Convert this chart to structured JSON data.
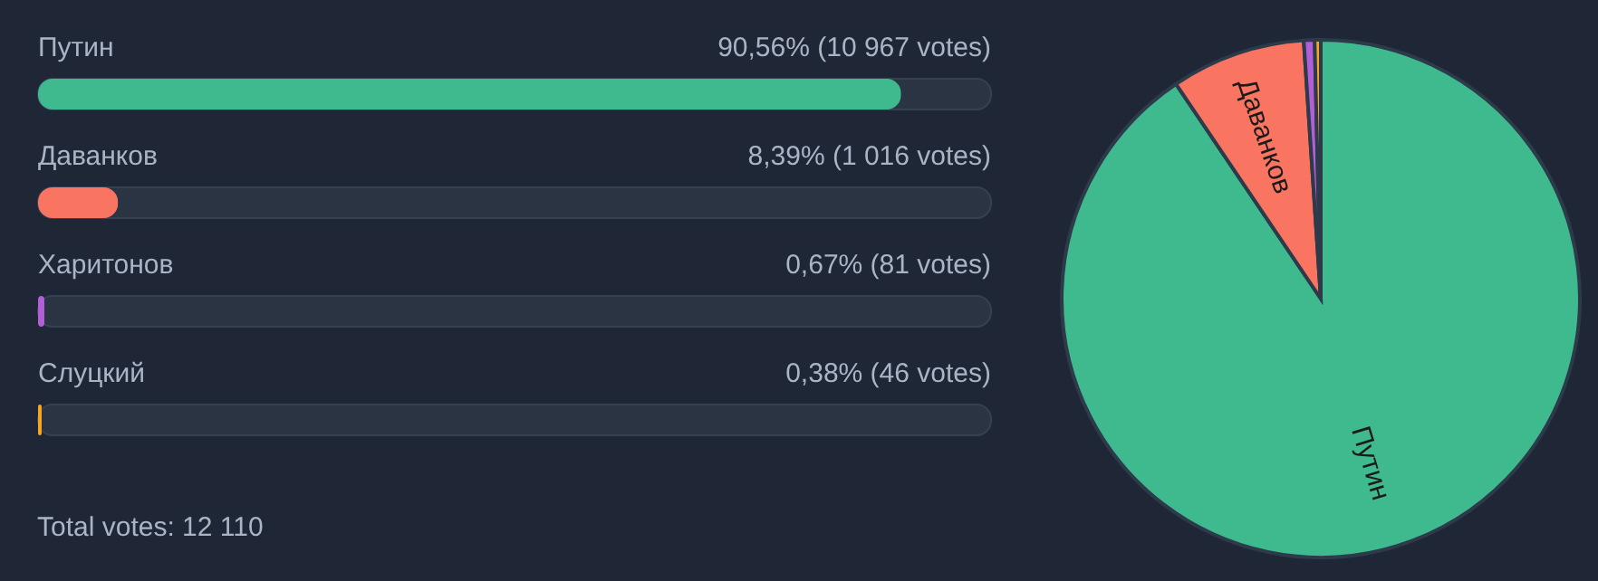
{
  "chart_data": [
    {
      "type": "bar",
      "orientation": "horizontal",
      "categories": [
        "Путин",
        "Даванков",
        "Харитонов",
        "Слуцкий"
      ],
      "values": [
        90.56,
        8.39,
        0.67,
        0.38
      ],
      "colors": [
        "#3fba8f",
        "#fa7561",
        "#b15fd6",
        "#f5a623"
      ],
      "value_labels": [
        "90,56% (10 967 votes)",
        "8,39% (1 016 votes)",
        "0,67% (81 votes)",
        "0,38% (46 votes)"
      ],
      "xlim": [
        0,
        100
      ],
      "tick_labels": false,
      "annotations": [
        "Total votes: 12 110"
      ]
    },
    {
      "type": "pie",
      "categories": [
        "Путин",
        "Даванков",
        null,
        null
      ],
      "values": [
        90.56,
        8.39,
        0.67,
        0.38
      ],
      "colors": [
        "#3fba8f",
        "#fa7561",
        "#b15fd6",
        "#f5a623"
      ]
    }
  ]
}
